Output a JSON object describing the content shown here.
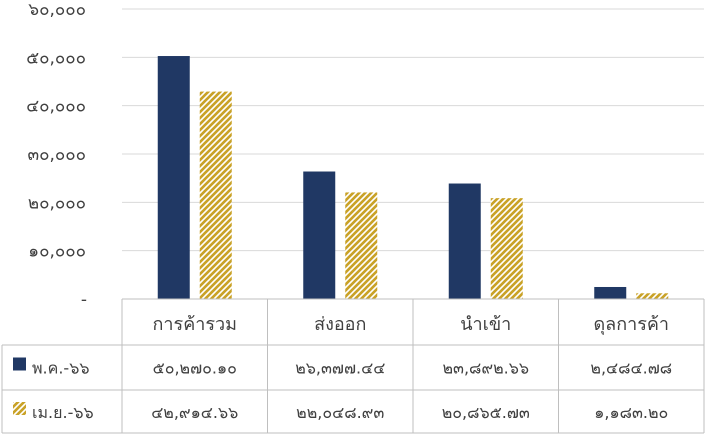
{
  "chart_data": {
    "type": "bar",
    "categories": [
      "การค้ารวม",
      "ส่งออก",
      "นำเข้า",
      "ดุลการค้า"
    ],
    "series": [
      {
        "name": "พ.ค.-๖๖",
        "values": [
          50270.1,
          26377.44,
          23892.66,
          2484.78
        ],
        "labels": [
          "๕๐,๒๗๐.๑๐",
          "๒๖,๓๗๗.๔๔",
          "๒๓,๘๙๒.๖๖",
          "๒,๔๘๔.๗๘"
        ],
        "color": "#203864",
        "pattern": "solid"
      },
      {
        "name": "เม.ย.-๖๖",
        "values": [
          42914.66,
          22048.93,
          20865.73,
          1183.2
        ],
        "labels": [
          "๔๒,๙๑๔.๖๖",
          "๒๒,๐๔๘.๙๓",
          "๒๐,๘๖๕.๗๓",
          "๑,๑๘๓.๒๐"
        ],
        "color": "#c9a227",
        "pattern": "diagonal-hatch"
      }
    ],
    "ylim": [
      0,
      60000
    ],
    "yticks": [
      0,
      10000,
      20000,
      30000,
      40000,
      50000,
      60000
    ],
    "ytick_labels": [
      "-",
      "๑๐,๐๐๐",
      "๒๐,๐๐๐",
      "๓๐,๐๐๐",
      "๔๐,๐๐๐",
      "๕๐,๐๐๐",
      "๖๐,๐๐๐"
    ],
    "grid": true,
    "legend": "data-table"
  }
}
